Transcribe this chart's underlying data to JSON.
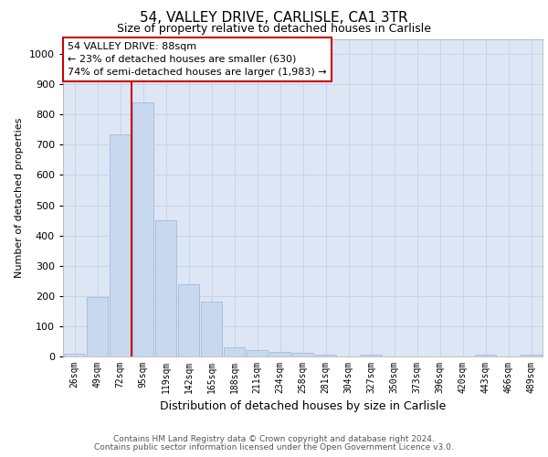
{
  "title_line1": "54, VALLEY DRIVE, CARLISLE, CA1 3TR",
  "title_line2": "Size of property relative to detached houses in Carlisle",
  "xlabel": "Distribution of detached houses by size in Carlisle",
  "ylabel": "Number of detached properties",
  "footer_line1": "Contains HM Land Registry data © Crown copyright and database right 2024.",
  "footer_line2": "Contains public sector information licensed under the Open Government Licence v3.0.",
  "annotation_line1": "54 VALLEY DRIVE: 88sqm",
  "annotation_line2": "← 23% of detached houses are smaller (630)",
  "annotation_line3": "74% of semi-detached houses are larger (1,983) →",
  "bin_labels": [
    "26sqm",
    "49sqm",
    "72sqm",
    "95sqm",
    "119sqm",
    "142sqm",
    "165sqm",
    "188sqm",
    "211sqm",
    "234sqm",
    "258sqm",
    "281sqm",
    "304sqm",
    "327sqm",
    "350sqm",
    "373sqm",
    "396sqm",
    "420sqm",
    "443sqm",
    "466sqm",
    "489sqm"
  ],
  "bar_values": [
    10,
    195,
    735,
    840,
    450,
    240,
    180,
    30,
    20,
    15,
    12,
    5,
    0,
    5,
    0,
    0,
    0,
    0,
    5,
    0,
    5
  ],
  "bar_color": "#c8d8ef",
  "bar_edge_color": "#9ab4d4",
  "vline_pos": 2.5,
  "vline_color": "#cc0000",
  "ylim": [
    0,
    1050
  ],
  "yticks": [
    0,
    100,
    200,
    300,
    400,
    500,
    600,
    700,
    800,
    900,
    1000
  ],
  "grid_color": "#c8d4e8",
  "background_color": "#dce6f5",
  "annotation_box_facecolor": "#ffffff",
  "annotation_box_edgecolor": "#cc0000",
  "title1_fontsize": 11,
  "title2_fontsize": 9,
  "ylabel_fontsize": 8,
  "xlabel_fontsize": 9,
  "tick_fontsize": 7,
  "ytick_fontsize": 8,
  "annotation_fontsize": 8,
  "footer_fontsize": 6.5
}
